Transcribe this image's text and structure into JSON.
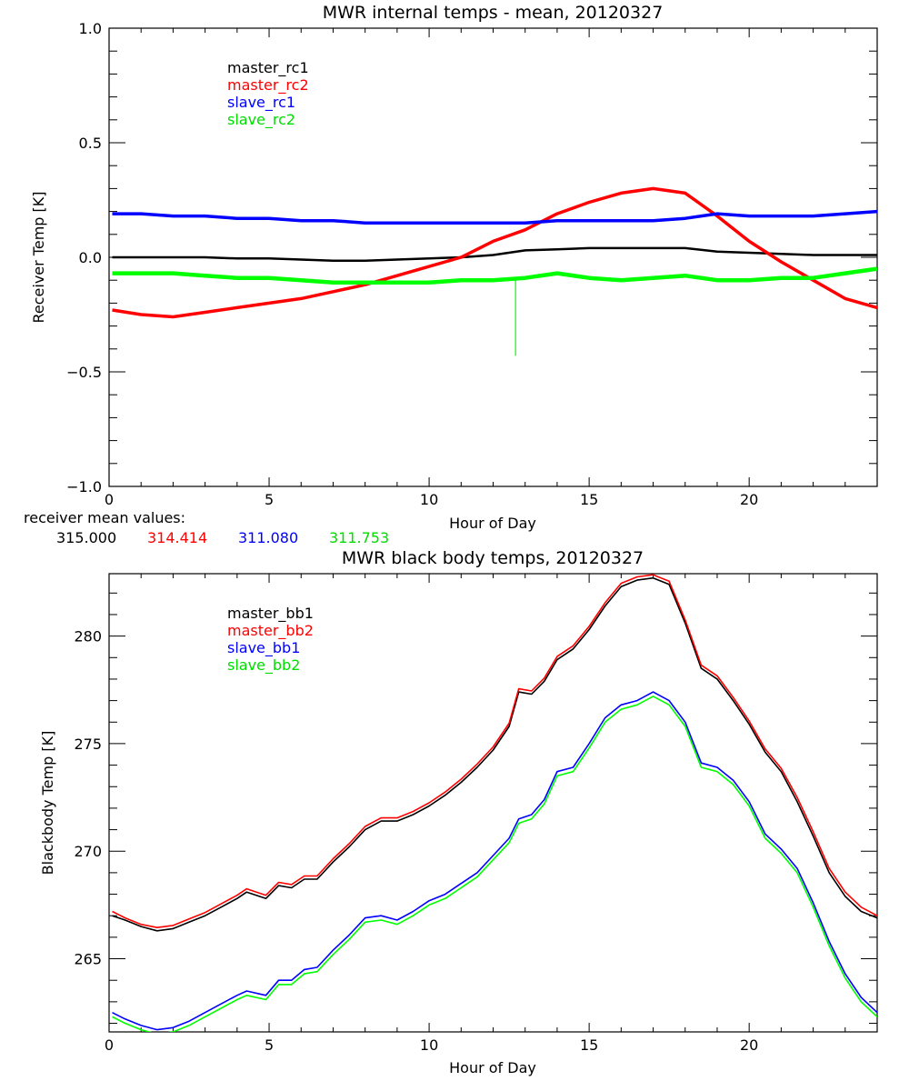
{
  "chart_data": [
    {
      "type": "line",
      "title": "MWR internal temps - mean, 20120327",
      "xlabel": "Hour of Day",
      "ylabel": "Receiver Temp [K]",
      "xlim": [
        0,
        24
      ],
      "ylim": [
        -1.0,
        1.0
      ],
      "xticks": [
        "0",
        "5",
        "10",
        "15",
        "20"
      ],
      "yticks": [
        "-1.0",
        "-0.5",
        "0.0",
        "0.5",
        "1.0"
      ],
      "grid": false,
      "legend_position": "top-left",
      "x": [
        0.1,
        1,
        2,
        3,
        4,
        5,
        6,
        7,
        8,
        9,
        10,
        11,
        12,
        13,
        14,
        15,
        16,
        17,
        18,
        19,
        20,
        21,
        22,
        23,
        24
      ],
      "series": [
        {
          "name": "master_rc1",
          "color": "#000000",
          "values": [
            0.0,
            0.0,
            0.0,
            0.0,
            -0.005,
            -0.005,
            -0.01,
            -0.015,
            -0.015,
            -0.01,
            -0.005,
            0.0,
            0.01,
            0.03,
            0.035,
            0.04,
            0.04,
            0.04,
            0.04,
            0.025,
            0.02,
            0.015,
            0.01,
            0.01,
            0.01
          ]
        },
        {
          "name": "master_rc2",
          "color": "#ff0000",
          "values": [
            -0.23,
            -0.25,
            -0.26,
            -0.24,
            -0.22,
            -0.2,
            -0.18,
            -0.15,
            -0.12,
            -0.08,
            -0.04,
            0.0,
            0.07,
            0.12,
            0.19,
            0.24,
            0.28,
            0.3,
            0.28,
            0.18,
            0.07,
            -0.02,
            -0.1,
            -0.18,
            -0.22
          ]
        },
        {
          "name": "slave_rc1",
          "color": "#0000ff",
          "values": [
            0.19,
            0.19,
            0.18,
            0.18,
            0.17,
            0.17,
            0.16,
            0.16,
            0.15,
            0.15,
            0.15,
            0.15,
            0.15,
            0.15,
            0.16,
            0.16,
            0.16,
            0.16,
            0.17,
            0.19,
            0.18,
            0.18,
            0.18,
            0.19,
            0.2
          ]
        },
        {
          "name": "slave_rc2",
          "color": "#00ff00",
          "values": [
            -0.07,
            -0.07,
            -0.07,
            -0.08,
            -0.09,
            -0.09,
            -0.1,
            -0.11,
            -0.11,
            -0.11,
            -0.11,
            -0.1,
            -0.1,
            -0.09,
            -0.07,
            -0.09,
            -0.1,
            -0.09,
            -0.08,
            -0.1,
            -0.1,
            -0.09,
            -0.09,
            -0.07,
            -0.05
          ]
        }
      ],
      "annotations": [
        {
          "series": "slave_rc2",
          "type": "spike",
          "x": 12.7,
          "y_from": -0.1,
          "y_to": -0.43
        }
      ]
    },
    {
      "type": "line",
      "title": "MWR black body temps, 20120327",
      "xlabel": "Hour of Day",
      "ylabel": "Blackbody Temp [K]",
      "xlim": [
        0,
        24
      ],
      "ylim": [
        261.6,
        282.9
      ],
      "xticks": [
        "0",
        "5",
        "10",
        "15",
        "20"
      ],
      "yticks": [
        "265",
        "270",
        "275",
        "280"
      ],
      "grid": false,
      "legend_position": "top-left",
      "x": [
        0.1,
        0.5,
        1,
        1.5,
        2,
        2.5,
        3,
        3.5,
        4,
        4.3,
        4.9,
        5.3,
        5.7,
        6.1,
        6.5,
        7,
        7.5,
        8,
        8.5,
        9,
        9.5,
        10,
        10.5,
        11,
        11.5,
        12,
        12.5,
        12.8,
        13.2,
        13.6,
        14,
        14.5,
        15,
        15.5,
        16,
        16.5,
        17,
        17.5,
        18,
        18.5,
        19,
        19.5,
        20,
        20.5,
        21,
        21.5,
        22,
        22.5,
        23,
        23.5,
        24
      ],
      "series": [
        {
          "name": "master_bb1",
          "color": "#000000",
          "values": [
            267.0,
            266.8,
            266.5,
            266.3,
            266.4,
            266.7,
            267.0,
            267.4,
            267.8,
            268.1,
            267.8,
            268.4,
            268.3,
            268.7,
            268.7,
            269.5,
            270.2,
            271.0,
            271.4,
            271.4,
            271.7,
            272.1,
            272.6,
            273.2,
            273.9,
            274.7,
            275.8,
            277.4,
            277.3,
            277.9,
            278.9,
            279.4,
            280.3,
            281.4,
            282.3,
            282.6,
            282.7,
            282.4,
            280.6,
            278.5,
            278.0,
            277.0,
            275.9,
            274.6,
            273.7,
            272.3,
            270.7,
            269.0,
            267.9,
            267.2,
            266.9
          ]
        },
        {
          "name": "master_bb2",
          "color": "#ff0000",
          "values": [
            267.2,
            266.9,
            266.6,
            266.45,
            266.55,
            266.85,
            267.15,
            267.55,
            267.95,
            268.25,
            267.95,
            268.55,
            268.45,
            268.85,
            268.85,
            269.65,
            270.35,
            271.15,
            271.55,
            271.55,
            271.85,
            272.25,
            272.75,
            273.35,
            274.05,
            274.85,
            275.95,
            277.55,
            277.45,
            278.05,
            279.05,
            279.55,
            280.45,
            281.55,
            282.45,
            282.75,
            282.85,
            282.55,
            280.75,
            278.65,
            278.15,
            277.15,
            276.05,
            274.75,
            273.85,
            272.5,
            270.9,
            269.2,
            268.1,
            267.4,
            267.0
          ]
        },
        {
          "name": "slave_bb1",
          "color": "#0000ff",
          "values": [
            262.5,
            262.2,
            261.9,
            261.7,
            261.8,
            262.1,
            262.5,
            262.9,
            263.3,
            263.5,
            263.3,
            264.0,
            264.0,
            264.5,
            264.6,
            265.4,
            266.1,
            266.9,
            267.0,
            266.8,
            267.2,
            267.7,
            268.0,
            268.5,
            269.0,
            269.8,
            270.6,
            271.5,
            271.7,
            272.4,
            273.7,
            273.9,
            275.0,
            276.2,
            276.8,
            277.0,
            277.4,
            277.0,
            276.0,
            274.1,
            273.9,
            273.3,
            272.3,
            270.8,
            270.1,
            269.2,
            267.6,
            265.8,
            264.3,
            263.2,
            262.5
          ]
        },
        {
          "name": "slave_bb2",
          "color": "#00ff00",
          "values": [
            262.3,
            262.0,
            261.7,
            261.5,
            261.6,
            261.9,
            262.3,
            262.7,
            263.1,
            263.3,
            263.1,
            263.8,
            263.8,
            264.3,
            264.4,
            265.2,
            265.9,
            266.7,
            266.8,
            266.6,
            267.0,
            267.5,
            267.8,
            268.3,
            268.8,
            269.6,
            270.4,
            271.3,
            271.5,
            272.2,
            273.5,
            273.7,
            274.8,
            276.0,
            276.6,
            276.8,
            277.2,
            276.8,
            275.8,
            273.9,
            273.7,
            273.1,
            272.1,
            270.6,
            269.9,
            269.0,
            267.4,
            265.6,
            264.1,
            263.0,
            262.3
          ]
        }
      ]
    }
  ],
  "receiver_mean": {
    "label": "receiver mean values:",
    "values": [
      {
        "text": "315.000",
        "color": "#000000"
      },
      {
        "text": "314.414",
        "color": "#ff0000"
      },
      {
        "text": "311.080",
        "color": "#0000ff"
      },
      {
        "text": "311.753",
        "color": "#00ff00"
      }
    ]
  }
}
